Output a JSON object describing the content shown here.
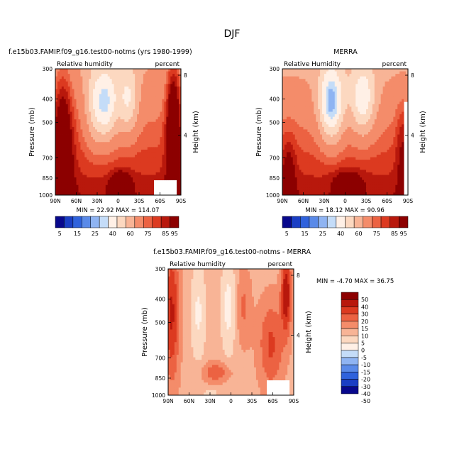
{
  "figure_title": "DJF",
  "colors": {
    "rh_palette": [
      "#08088c",
      "#1a3ec4",
      "#2f62dc",
      "#5a8ae8",
      "#8fb4f2",
      "#c4dcf8",
      "#fff0e6",
      "#fcd8c0",
      "#f8b496",
      "#f48c6a",
      "#ec6242",
      "#dc3a20",
      "#b8180c",
      "#8c0000"
    ],
    "diff_palette": [
      "#08088c",
      "#1a3ec4",
      "#2f62dc",
      "#5a8ae8",
      "#8fb4f2",
      "#c4dcf8",
      "#fff0e6",
      "#fcd8c0",
      "#f8b496",
      "#f48c6a",
      "#ec6242",
      "#dc3a20",
      "#b8180c",
      "#8c0000"
    ]
  },
  "chart_data": [
    {
      "type": "heatmap",
      "title": "f.e15b03.FAMIP.f09_g16.test00-notms (yrs 1980-1999)",
      "left_label": "Relative humidity",
      "right_label": "percent",
      "ylabel": "Pressure (mb)",
      "y2label": "Height (km)",
      "x_ticks": [
        "90N",
        "60N",
        "30N",
        "0",
        "30S",
        "60S",
        "90S"
      ],
      "y_ticks": [
        "300",
        "400",
        "500",
        "700",
        "850",
        "1000"
      ],
      "y2_ticks": [
        "8",
        "4"
      ],
      "ylim": [
        1000,
        300
      ],
      "stats": "MIN =   22.92   MAX =  114.07",
      "colorbar_labels": [
        "5",
        "15",
        "25",
        "40",
        "60",
        "75",
        "85",
        "95"
      ],
      "levels": [
        5,
        10,
        15,
        20,
        25,
        30,
        40,
        50,
        60,
        70,
        75,
        80,
        85,
        90,
        95
      ]
    },
    {
      "type": "heatmap",
      "title": "MERRA",
      "left_label": "Relative Humidity",
      "right_label": "percent",
      "ylabel": "Pressure (mb)",
      "y2label": "Height (km)",
      "x_ticks": [
        "90N",
        "60N",
        "30N",
        "0",
        "30S",
        "60S",
        "90S"
      ],
      "y_ticks": [
        "300",
        "400",
        "500",
        "700",
        "850",
        "1000"
      ],
      "y2_ticks": [
        "8",
        "4"
      ],
      "ylim": [
        1000,
        300
      ],
      "stats": "MIN =   18.12   MAX =   90.96",
      "colorbar_labels": [
        "5",
        "15",
        "25",
        "40",
        "60",
        "75",
        "85",
        "95"
      ],
      "levels": [
        5,
        10,
        15,
        20,
        25,
        30,
        40,
        50,
        60,
        70,
        75,
        80,
        85,
        90,
        95
      ]
    },
    {
      "type": "heatmap",
      "title": "f.e15b03.FAMIP.f09_g16.test00-notms - MERRA",
      "left_label": "Relative humidity",
      "right_label": "percent",
      "ylabel": "Pressure (mb)",
      "y2label": "Height (km)",
      "x_ticks": [
        "90N",
        "60N",
        "30N",
        "0",
        "30S",
        "60S",
        "90S"
      ],
      "y_ticks": [
        "300",
        "400",
        "500",
        "700",
        "850",
        "1000"
      ],
      "y2_ticks": [
        "8",
        "4"
      ],
      "ylim": [
        1000,
        300
      ],
      "stats": "MIN =  -4.70   MAX =   36.75",
      "colorbar_labels": [
        "50",
        "40",
        "30",
        "20",
        "15",
        "10",
        "5",
        "0",
        "-5",
        "-10",
        "-15",
        "-20",
        "-30",
        "-40",
        "-50"
      ],
      "levels": [
        -50,
        -40,
        -30,
        -20,
        -15,
        -10,
        -5,
        0,
        5,
        10,
        15,
        20,
        30,
        40,
        50
      ]
    }
  ]
}
